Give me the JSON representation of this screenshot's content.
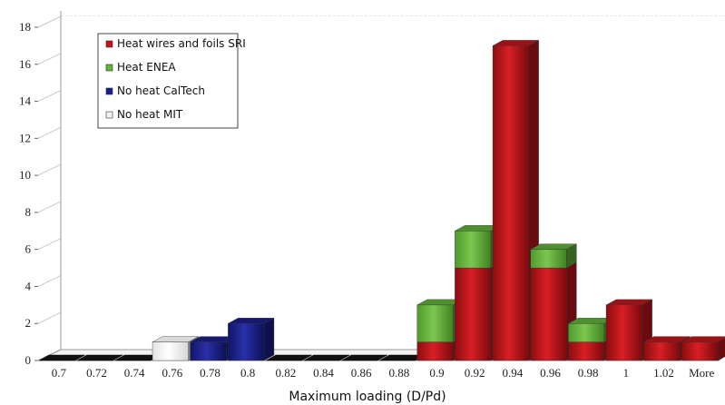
{
  "chart_data": {
    "type": "bar",
    "stacked": true,
    "categories": [
      "0.7",
      "0.72",
      "0.74",
      "0.76",
      "0.78",
      "0.8",
      "0.82",
      "0.84",
      "0.86",
      "0.88",
      "0.9",
      "0.92",
      "0.94",
      "0.96",
      "0.98",
      "1",
      "1.02",
      "More"
    ],
    "series": [
      {
        "name": "Heat wires and foils SRI",
        "color": "#c0161b",
        "values": [
          0,
          0,
          0,
          0,
          0,
          0,
          0,
          0,
          0,
          0,
          1,
          5,
          17,
          5,
          1,
          3,
          1,
          1
        ]
      },
      {
        "name": "Heat ENEA",
        "color": "#63b43a",
        "values": [
          0,
          0,
          0,
          0,
          0,
          0,
          0,
          0,
          0,
          0,
          2,
          2,
          0,
          1,
          1,
          0,
          0,
          0
        ]
      },
      {
        "name": "No heat CalTech",
        "color": "#1a1f8e",
        "values": [
          0,
          0,
          0,
          0,
          1,
          2,
          0,
          0,
          0,
          0,
          0,
          0,
          0,
          0,
          0,
          0,
          0,
          0
        ]
      },
      {
        "name": "No heat MIT",
        "color": "#f2f2f2",
        "values": [
          0,
          0,
          0,
          1,
          0,
          0,
          0,
          0,
          0,
          0,
          0,
          0,
          0,
          0,
          0,
          0,
          0,
          0
        ]
      }
    ],
    "yticks": [
      "0",
      "2",
      "4",
      "6",
      "8",
      "10",
      "12",
      "14",
      "16",
      "18"
    ],
    "ylim": [
      0,
      18
    ],
    "xlabel": "Maximum loading (D/Pd)",
    "ylabel": "",
    "grid": true,
    "legend_position": "top-left"
  }
}
